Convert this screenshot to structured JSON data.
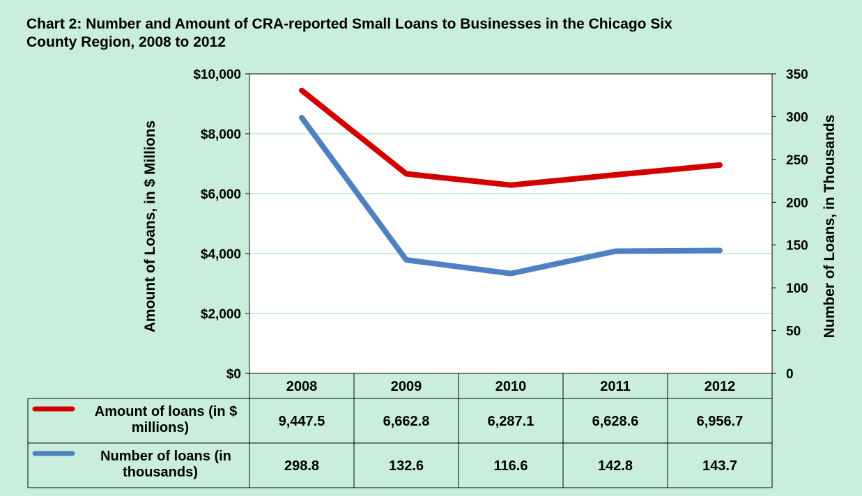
{
  "title": "Chart 2: Number and Amount of CRA-reported Small Loans to Businesses in the Chicago Six County Region, 2008 to 2012",
  "colors": {
    "background": "#c9efdc",
    "plot_area": "#ffffff",
    "gridline": "#c9efdc",
    "amount_series": "#d40000",
    "number_series": "#4f81c2"
  },
  "chart_data": {
    "type": "line",
    "title": "Chart 2: Number and Amount of CRA-reported Small Loans to Businesses in the Chicago Six County Region, 2008 to 2012",
    "categories": [
      "2008",
      "2009",
      "2010",
      "2011",
      "2012"
    ],
    "y_left": {
      "label": "Amount of Loans, in $ Millions",
      "min": 0,
      "max": 10000,
      "ticks": [
        0,
        2000,
        4000,
        6000,
        8000,
        10000
      ],
      "tick_labels": [
        "$0",
        "$2,000",
        "$4,000",
        "$6,000",
        "$8,000",
        "$10,000"
      ]
    },
    "y_right": {
      "label": "Number of Loans, in Thousands",
      "min": 0,
      "max": 350,
      "ticks": [
        0,
        50,
        100,
        150,
        200,
        250,
        300,
        350
      ],
      "tick_labels": [
        "0",
        "50",
        "100",
        "150",
        "200",
        "250",
        "300",
        "350"
      ]
    },
    "grid": true,
    "legend_position": "data-table-bottom",
    "series": [
      {
        "name": "Amount of loans (in $ millions)",
        "name_lines": [
          "Amount of loans (in $",
          "millions)"
        ],
        "axis": "left",
        "color": "#d40000",
        "values": [
          9447.5,
          6662.8,
          6287.1,
          6628.6,
          6956.7
        ],
        "value_labels": [
          "9,447.5",
          "6,662.8",
          "6,287.1",
          "6,628.6",
          "6,956.7"
        ]
      },
      {
        "name": "Number of loans (in thousands)",
        "name_lines": [
          "Number of loans (in",
          "thousands)"
        ],
        "axis": "right",
        "color": "#4f81c2",
        "values": [
          298.8,
          132.6,
          116.6,
          142.8,
          143.7
        ],
        "value_labels": [
          "298.8",
          "132.6",
          "116.6",
          "142.8",
          "143.7"
        ]
      }
    ]
  }
}
